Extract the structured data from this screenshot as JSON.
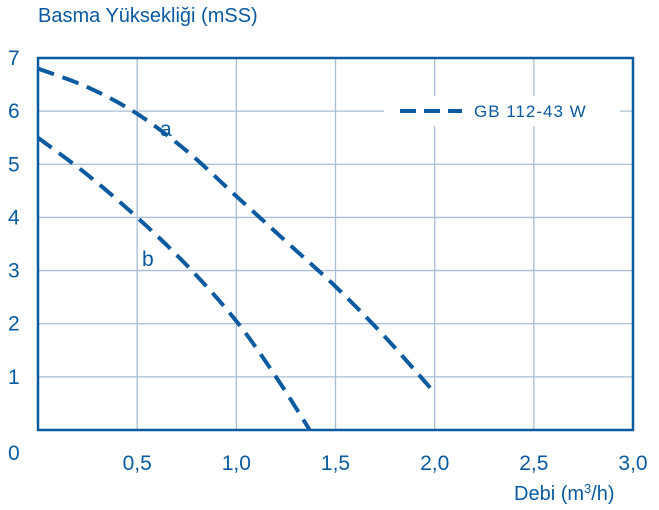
{
  "chart_data": {
    "type": "line",
    "ylabel": "Basma Yüksekliği (mSS)",
    "xlabel_main": "Debi (m",
    "xlabel_sup": "3",
    "xlabel_end": "/h)",
    "xlim": [
      0,
      3.0
    ],
    "ylim": [
      0,
      7
    ],
    "x_ticks": [
      "0,5",
      "1,0",
      "1,5",
      "2,0",
      "2,5",
      "3,0"
    ],
    "x_tick_values": [
      0.5,
      1.0,
      1.5,
      2.0,
      2.5,
      3.0
    ],
    "y_ticks": [
      "1",
      "2",
      "3",
      "4",
      "5",
      "6",
      "7"
    ],
    "y_tick_values": [
      1,
      2,
      3,
      4,
      5,
      6,
      7
    ],
    "origin_label": "0",
    "grid": true,
    "legend": {
      "label": "GB 112-43 W",
      "placement": "top-right"
    },
    "color": "#0a5aa0",
    "series": [
      {
        "label": "a",
        "x": [
          0,
          0.25,
          0.5,
          0.75,
          1.0,
          1.25,
          1.5,
          1.75,
          2.0
        ],
        "y": [
          6.8,
          6.45,
          5.95,
          5.25,
          4.4,
          3.55,
          2.7,
          1.75,
          0.7
        ]
      },
      {
        "label": "b",
        "x": [
          0,
          0.25,
          0.5,
          0.75,
          1.0,
          1.2,
          1.37
        ],
        "y": [
          5.5,
          4.8,
          4.0,
          3.1,
          2.05,
          1.0,
          0.0
        ]
      }
    ]
  }
}
